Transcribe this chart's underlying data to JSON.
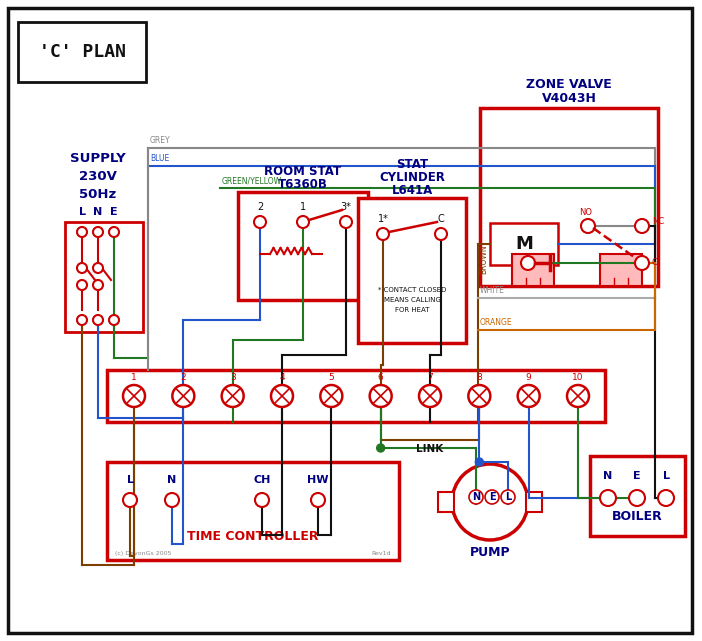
{
  "bg": "#ffffff",
  "red": "#cc0000",
  "blue": "#2255cc",
  "green": "#227722",
  "grey": "#888888",
  "brown": "#7b3f00",
  "black": "#111111",
  "orange": "#cc6600",
  "navy": "#000080",
  "title": "'C' PLAN",
  "supply_text": [
    "SUPPLY",
    "230V",
    "50Hz"
  ],
  "lne": [
    "L",
    "N",
    "E"
  ],
  "zone_valve_lines": [
    "V4043H",
    "ZONE VALVE"
  ],
  "room_stat_lines": [
    "T6360B",
    "ROOM STAT"
  ],
  "cyl_stat_lines": [
    "L641A",
    "CYLINDER",
    "STAT"
  ],
  "tc_label": "TIME CONTROLLER",
  "pump_label": "PUMP",
  "boiler_label": "BOILER",
  "link_label": "LINK",
  "copyright": "(c) DevonGs 2005",
  "rev": "Rev1d",
  "contact_note": [
    "* CONTACT CLOSED",
    "MEANS CALLING",
    "FOR HEAT"
  ]
}
